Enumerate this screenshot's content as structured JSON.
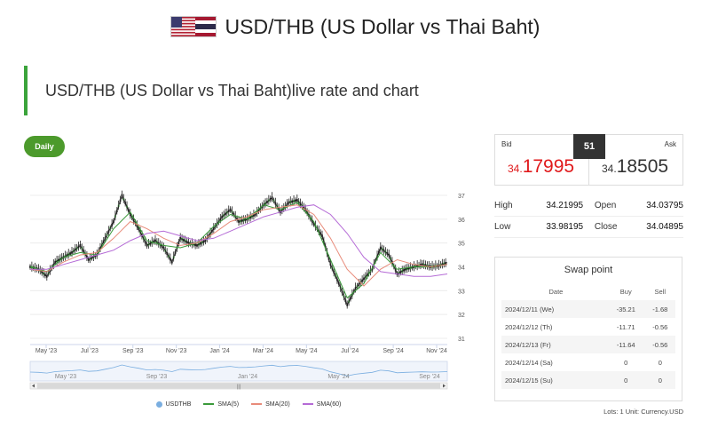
{
  "header": {
    "title": "USD/THB (US Dollar vs Thai Baht)",
    "colors": {
      "us_red": "#b22234",
      "us_blue": "#3c3b6e",
      "th_red": "#a51931",
      "th_blue": "#2d2a4a"
    }
  },
  "section": {
    "title": "USD/THB (US Dollar vs Thai Baht)live rate and chart"
  },
  "timeframe": {
    "label": "Daily"
  },
  "quote": {
    "bid_label": "Bid",
    "ask_label": "Ask",
    "spread": "51",
    "bid_small": "34.",
    "bid_big": "17995",
    "ask_small": "34.",
    "ask_big": "18505",
    "bid_color": "#e0191b"
  },
  "stats": {
    "high_label": "High",
    "high": "34.21995",
    "open_label": "Open",
    "open": "34.03795",
    "low_label": "Low",
    "low": "33.98195",
    "close_label": "Close",
    "close": "34.04895"
  },
  "swap": {
    "title": "Swap point",
    "headers": [
      "Date",
      "Buy",
      "Sell"
    ],
    "rows": [
      [
        "2024/12/11 (We)",
        "-35.21",
        "-1.68"
      ],
      [
        "2024/12/12 (Th)",
        "-11.71",
        "-0.56"
      ],
      [
        "2024/12/13 (Fr)",
        "-11.64",
        "-0.56"
      ],
      [
        "2024/12/14 (Sa)",
        "0",
        "0"
      ],
      [
        "2024/12/15 (Su)",
        "0",
        "0"
      ]
    ]
  },
  "footnote": "Lots: 1 Unit: Currency.USD",
  "legend": [
    {
      "name": "USDTHB",
      "color": "#7aaee0",
      "kind": "dot"
    },
    {
      "name": "SMA(5)",
      "color": "#3a9a3a",
      "kind": "line"
    },
    {
      "name": "SMA(20)",
      "color": "#e88b7a",
      "kind": "line"
    },
    {
      "name": "SMA(60)",
      "color": "#b56bd6",
      "kind": "line"
    }
  ],
  "chart_data": {
    "type": "line",
    "y_ticks": [
      "37",
      "36",
      "35",
      "34",
      "33",
      "32",
      "31"
    ],
    "ylim": [
      31,
      37
    ],
    "x_ticks": [
      "May '23",
      "Jul '23",
      "Sep '23",
      "Nov '23",
      "Jan '24",
      "Mar '24",
      "May '24",
      "Jul '24",
      "Sep '24",
      "Nov '24"
    ],
    "navigator_ticks": [
      "May '23",
      "Sep '23",
      "Jan '24",
      "May '24",
      "Sep '24"
    ],
    "series": [
      {
        "name": "USDTHB",
        "x": [
          0,
          2,
          4,
          6,
          8,
          10,
          12,
          14,
          16,
          18,
          20,
          22,
          24,
          26,
          28,
          30,
          32,
          34,
          36,
          38,
          40,
          42,
          44,
          46,
          48,
          50,
          52,
          54,
          56,
          58,
          60,
          62,
          64,
          66,
          68,
          70,
          72,
          74,
          76,
          78,
          80,
          82,
          84,
          86,
          88,
          90,
          92,
          94,
          96,
          98,
          100
        ],
        "values": [
          34.0,
          33.9,
          33.6,
          34.2,
          34.4,
          34.6,
          34.9,
          34.3,
          34.5,
          35.2,
          35.9,
          37.0,
          36.2,
          35.6,
          34.9,
          35.1,
          34.8,
          34.2,
          35.2,
          35.0,
          34.9,
          35.1,
          35.6,
          36.1,
          36.4,
          35.9,
          36.0,
          36.2,
          36.6,
          36.9,
          36.3,
          36.7,
          36.8,
          36.4,
          35.8,
          35.3,
          34.1,
          33.3,
          32.4,
          33.1,
          33.5,
          33.9,
          34.8,
          34.5,
          33.7,
          33.9,
          34.0,
          34.1,
          34.0,
          34.05,
          34.18
        ],
        "color": "#222222"
      },
      {
        "name": "SMA(5)",
        "x": [
          0,
          4,
          8,
          12,
          16,
          20,
          24,
          28,
          32,
          36,
          40,
          44,
          48,
          52,
          56,
          60,
          64,
          68,
          72,
          76,
          80,
          84,
          88,
          92,
          96,
          100
        ],
        "values": [
          34.0,
          33.8,
          34.4,
          34.6,
          34.5,
          35.6,
          36.3,
          35.1,
          34.9,
          34.8,
          35.0,
          35.7,
          36.2,
          36.0,
          36.6,
          36.4,
          36.7,
          35.9,
          34.3,
          32.7,
          33.3,
          34.6,
          33.9,
          34.0,
          34.0,
          34.1
        ],
        "color": "#3a9a3a"
      },
      {
        "name": "SMA(20)",
        "x": [
          0,
          4,
          8,
          12,
          16,
          20,
          24,
          28,
          32,
          36,
          40,
          44,
          48,
          52,
          56,
          60,
          64,
          68,
          72,
          76,
          80,
          84,
          88,
          92,
          96,
          100
        ],
        "values": [
          33.9,
          33.8,
          34.2,
          34.5,
          34.6,
          35.2,
          35.9,
          35.6,
          35.2,
          34.9,
          35.0,
          35.4,
          35.9,
          36.1,
          36.4,
          36.5,
          36.6,
          36.2,
          35.2,
          33.9,
          33.2,
          33.9,
          34.3,
          34.1,
          34.0,
          34.1
        ],
        "color": "#e88b7a"
      },
      {
        "name": "SMA(60)",
        "x": [
          0,
          4,
          8,
          12,
          16,
          20,
          24,
          28,
          32,
          36,
          40,
          44,
          48,
          52,
          56,
          60,
          64,
          68,
          72,
          76,
          80,
          84,
          88,
          92,
          96,
          100
        ],
        "values": [
          33.9,
          33.9,
          34.1,
          34.3,
          34.5,
          34.7,
          35.1,
          35.4,
          35.5,
          35.3,
          35.1,
          35.2,
          35.5,
          35.8,
          36.1,
          36.3,
          36.5,
          36.6,
          36.2,
          35.4,
          34.4,
          33.8,
          33.7,
          33.6,
          33.6,
          33.7
        ],
        "color": "#b56bd6"
      }
    ],
    "grid": true
  }
}
